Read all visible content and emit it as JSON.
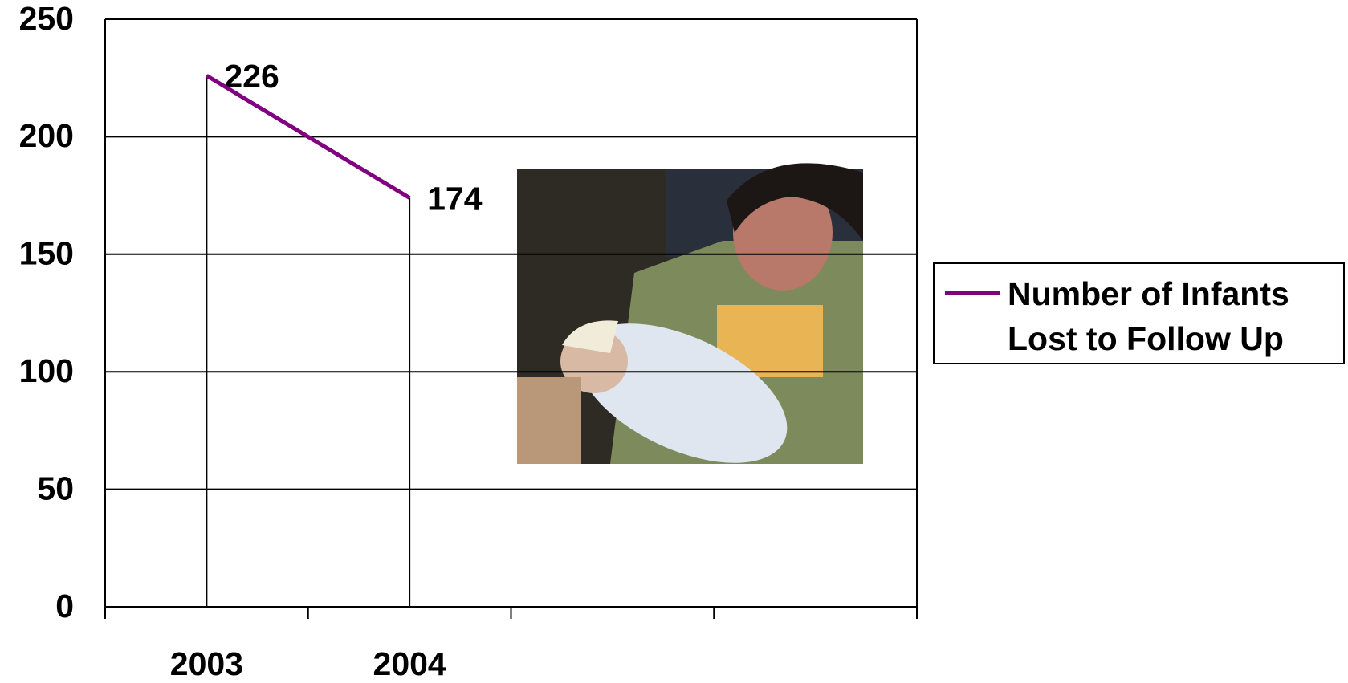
{
  "chart_data": {
    "type": "line",
    "categories": [
      "2003",
      "2004",
      null,
      null
    ],
    "series": [
      {
        "name": "Number of Infants Lost to Follow Up",
        "color": "#800080",
        "values": [
          226,
          174,
          null,
          null
        ]
      }
    ],
    "ylim": [
      0,
      250
    ],
    "yticks": [
      0,
      50,
      100,
      150,
      200,
      250
    ],
    "grid": true,
    "drop_lines": true,
    "legend": "right"
  }
}
